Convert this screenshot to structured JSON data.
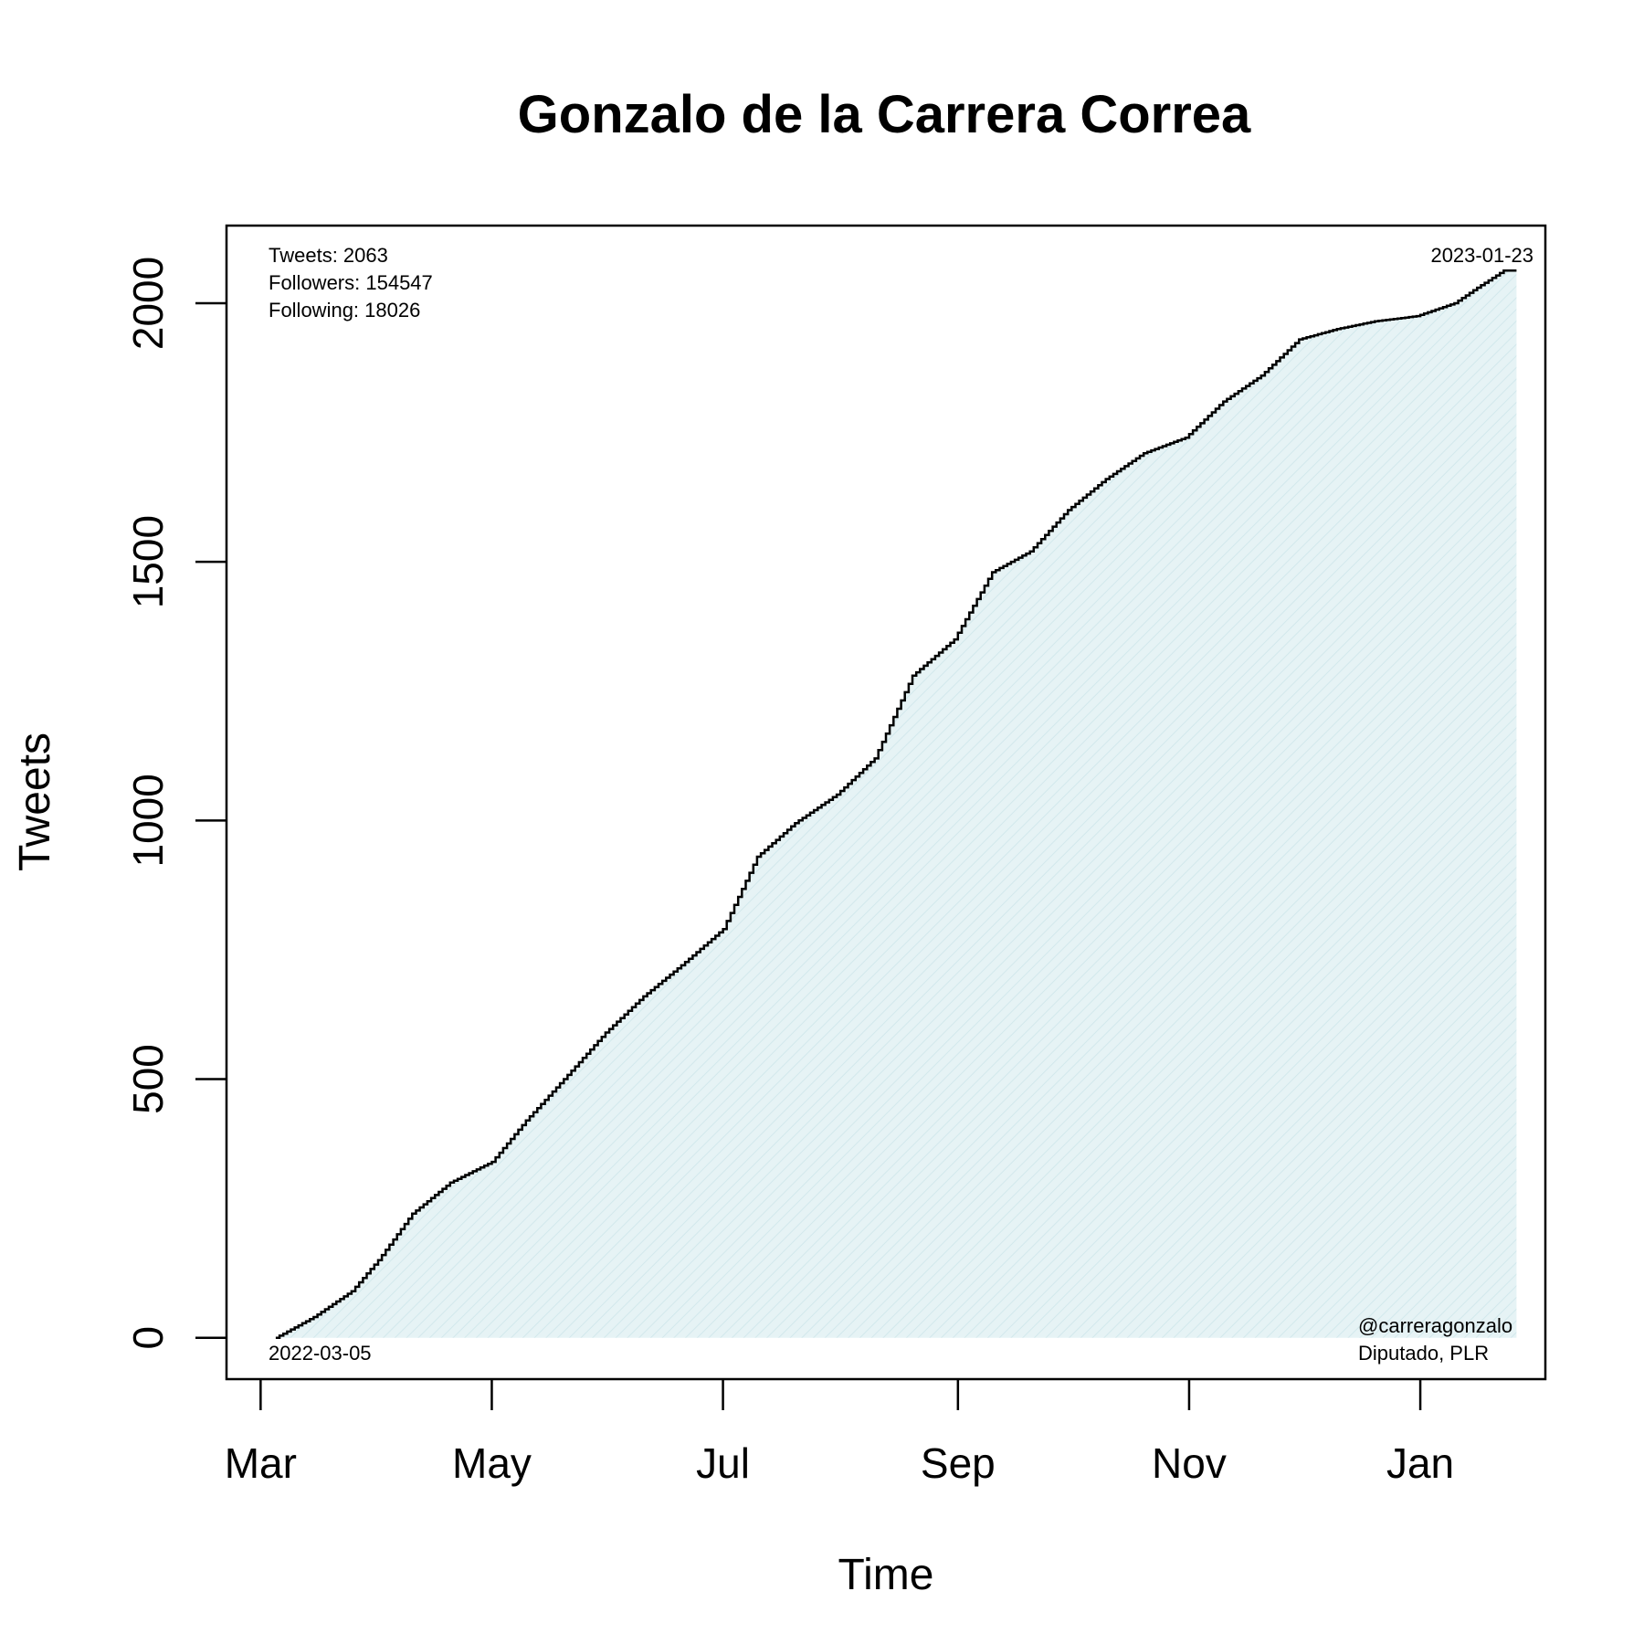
{
  "chart_data": {
    "type": "area",
    "title": "Gonzalo de la Carrera Correa",
    "xlabel": "Time",
    "ylabel": "Tweets",
    "x_ticks": [
      "Mar",
      "May",
      "Jul",
      "Sep",
      "Nov",
      "Jan"
    ],
    "x_tick_dates": [
      "2022-03-01",
      "2022-05-01",
      "2022-07-01",
      "2022-09-01",
      "2022-11-01",
      "2023-01-01"
    ],
    "y_ticks": [
      0,
      500,
      1000,
      1500,
      2000
    ],
    "xlim": [
      "2022-02-20",
      "2023-02-03"
    ],
    "ylim": [
      -80,
      2150
    ],
    "grid": false,
    "fill_color": "#e6f3f5",
    "line_color": "#000000",
    "series": [
      {
        "x": [
          "2022-03-05",
          "2022-03-15",
          "2022-03-25",
          "2022-04-01",
          "2022-04-10",
          "2022-04-20",
          "2022-05-01",
          "2022-05-10",
          "2022-05-20",
          "2022-05-31",
          "2022-06-10",
          "2022-06-20",
          "2022-07-01",
          "2022-07-10",
          "2022-07-20",
          "2022-07-31",
          "2022-08-10",
          "2022-08-20",
          "2022-08-31",
          "2022-09-10",
          "2022-09-20",
          "2022-09-30",
          "2022-10-10",
          "2022-10-20",
          "2022-10-31",
          "2022-11-10",
          "2022-11-20",
          "2022-11-30",
          "2022-12-10",
          "2022-12-20",
          "2022-12-31",
          "2023-01-10",
          "2023-01-16",
          "2023-01-23"
        ],
        "y": [
          0,
          40,
          90,
          150,
          240,
          300,
          340,
          420,
          500,
          590,
          660,
          720,
          790,
          930,
          995,
          1050,
          1120,
          1280,
          1350,
          1480,
          1520,
          1600,
          1660,
          1710,
          1740,
          1810,
          1860,
          1930,
          1950,
          1965,
          1975,
          2000,
          2030,
          2063
        ]
      }
    ],
    "annotations": {
      "tweets": "Tweets: 2063",
      "followers": "Followers: 154547",
      "following": "Following: 18026",
      "start_date": "2022-03-05",
      "end_date": "2023-01-23",
      "handle": "@carreragonzalo",
      "role": "Diputado, PLR"
    }
  }
}
